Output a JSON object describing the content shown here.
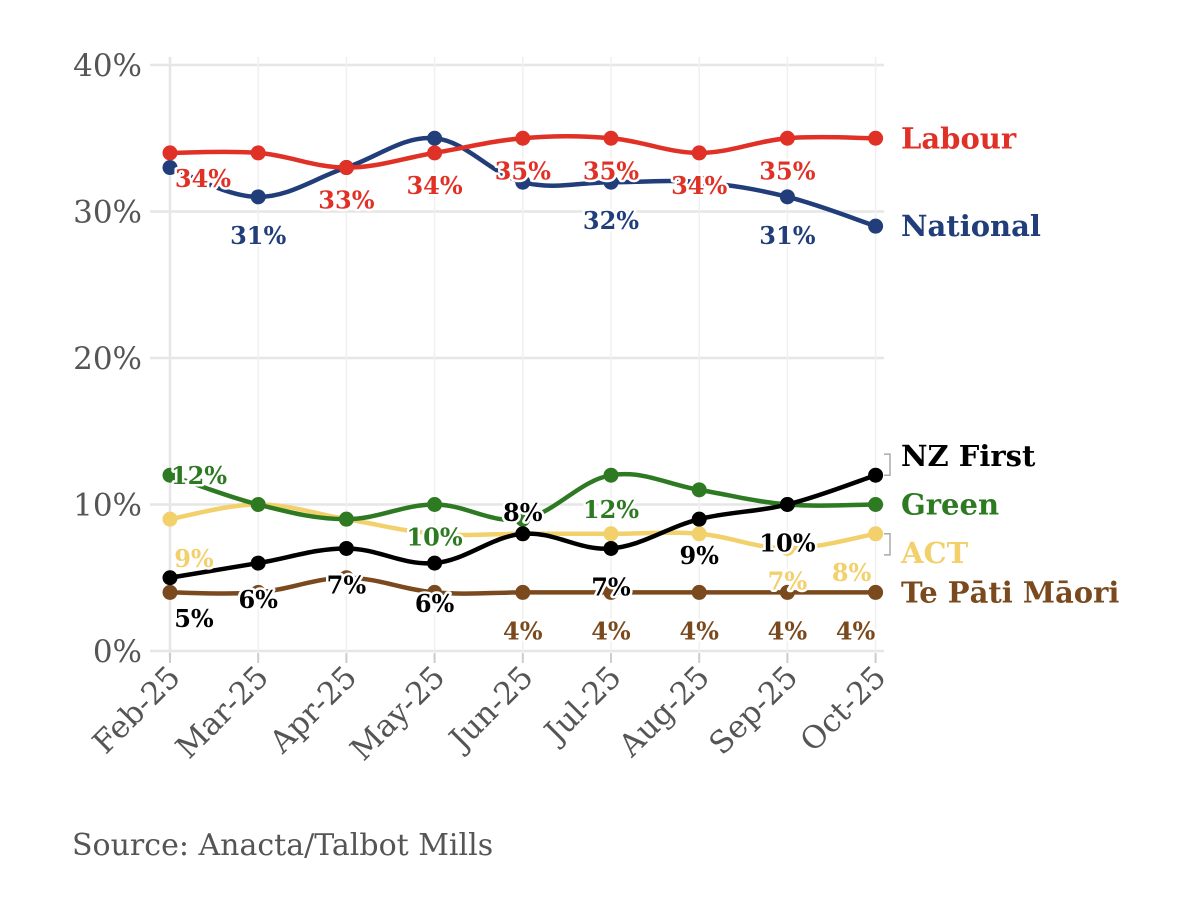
{
  "chart_data": {
    "type": "line",
    "title": "",
    "xlabel": "",
    "ylabel": "",
    "categories": [
      "Feb-25",
      "Mar-25",
      "Apr-25",
      "May-25",
      "Jun-25",
      "Jul-25",
      "Aug-25",
      "Sep-25",
      "Oct-25"
    ],
    "ylim": [
      0,
      40
    ],
    "yticks": [
      0,
      10,
      20,
      30,
      40
    ],
    "ytick_labels": [
      "0%",
      "10%",
      "20%",
      "30%",
      "40%"
    ],
    "grid": true,
    "series": [
      {
        "name": "Labour",
        "color": "#e03127",
        "values": [
          34,
          34,
          33,
          34,
          35,
          35,
          34,
          35,
          35
        ],
        "labels": [
          "34%",
          "",
          "33%",
          "34%",
          "35%",
          "35%",
          "34%",
          "35%",
          ""
        ]
      },
      {
        "name": "National",
        "color": "#213d7a",
        "values": [
          33,
          31,
          33,
          35,
          32,
          32,
          32,
          31,
          29
        ],
        "labels": [
          "",
          "31%",
          "",
          "",
          "",
          "32%",
          "",
          "31%",
          ""
        ]
      },
      {
        "name": "NZ First",
        "color": "#000000",
        "values": [
          5,
          6,
          7,
          6,
          8,
          7,
          9,
          10,
          12
        ],
        "labels": [
          "5%",
          "6%",
          "7%",
          "6%",
          "8%",
          "7%",
          "9%",
          "10%",
          ""
        ]
      },
      {
        "name": "Green",
        "color": "#2d7a22",
        "values": [
          12,
          10,
          9,
          10,
          9,
          12,
          11,
          10,
          10
        ],
        "labels": [
          "12%",
          "",
          "",
          "10%",
          "",
          "12%",
          "",
          "",
          ""
        ]
      },
      {
        "name": "ACT",
        "color": "#f2d06b",
        "values": [
          9,
          10,
          9,
          8,
          8,
          8,
          8,
          7,
          8
        ],
        "labels": [
          "9%",
          "",
          "",
          "",
          "",
          "",
          "",
          "7%",
          "8%"
        ]
      },
      {
        "name": "Te Pāti Māori",
        "color": "#7a4a1e",
        "values": [
          4,
          4,
          5,
          4,
          4,
          4,
          4,
          4,
          4
        ],
        "labels": [
          "",
          "",
          "",
          "",
          "4%",
          "4%",
          "4%",
          "4%",
          "4%"
        ]
      }
    ]
  },
  "source": "Source: Anacta/Talbot Mills"
}
